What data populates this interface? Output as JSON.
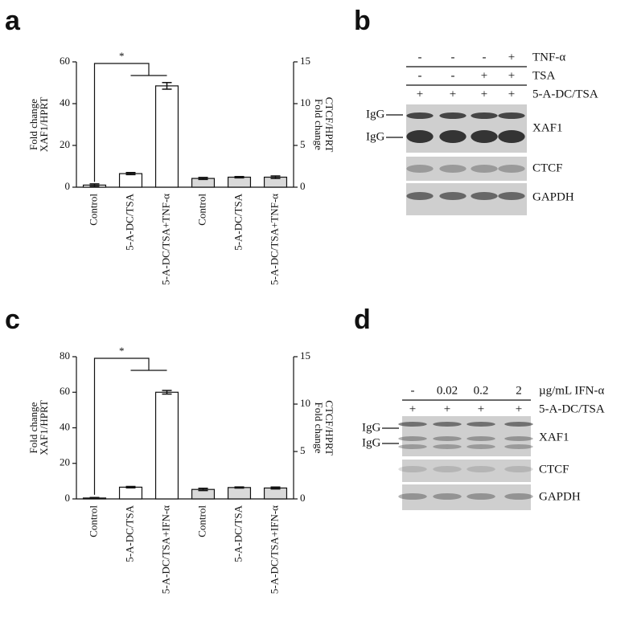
{
  "panel_labels": [
    "a",
    "b",
    "c",
    "d"
  ],
  "chart_data": [
    {
      "type": "bar",
      "categories": [
        "Control",
        "5-A-DC/TSA",
        "5-A-DC/TSA+TNF-α",
        "Control",
        "5-A-DC/TSA",
        "5-A-DC/TSA+TNF-α"
      ],
      "ylabel": [
        "Fold change",
        "XAF1/HPRT"
      ],
      "y2label": [
        "Fold change",
        "CTCF/HPRT"
      ],
      "ylim": [
        0,
        60
      ],
      "yticks": [
        0,
        20,
        40,
        60
      ],
      "y2lim": [
        0,
        15
      ],
      "y2ticks": [
        0,
        5,
        10,
        15
      ],
      "annotation": "*",
      "series": [
        {
          "color": "#ffffff",
          "values": [
            1,
            6.5,
            48.5,
            null,
            null,
            null
          ],
          "errors": [
            0.6,
            0.5,
            1.6,
            null,
            null,
            null
          ]
        },
        {
          "color": "#d9d9d9",
          "axis": "y2",
          "values": [
            null,
            null,
            null,
            1.05,
            1.2,
            1.2
          ],
          "errors": [
            null,
            null,
            null,
            0.12,
            0.08,
            0.15
          ]
        }
      ]
    },
    {
      "type": "bar",
      "categories": [
        "Control",
        "5-A-DC/TSA",
        "5-A-DC/TSA+IFN-α",
        "Control",
        "5-A-DC/TSA",
        "5-A-DC/TSA+IFN-α"
      ],
      "ylabel": [
        "Fold change",
        "XAF1/HPRT"
      ],
      "y2label": [
        "Fold change",
        "CTCF/HPRT"
      ],
      "ylim": [
        0,
        80
      ],
      "yticks": [
        0,
        20,
        40,
        60,
        80
      ],
      "y2lim": [
        0,
        15
      ],
      "y2ticks": [
        0,
        5,
        10,
        15
      ],
      "annotation": "*",
      "series": [
        {
          "color": "#ffffff",
          "values": [
            0.5,
            6.6,
            60,
            null,
            null,
            null
          ],
          "errors": [
            0.3,
            0.4,
            1.0,
            null,
            null,
            null
          ]
        },
        {
          "color": "#d9d9d9",
          "axis": "y2",
          "values": [
            null,
            null,
            null,
            1.0,
            1.2,
            1.15
          ],
          "errors": [
            null,
            null,
            null,
            0.12,
            0.06,
            0.1
          ]
        }
      ]
    }
  ],
  "blots": [
    {
      "conditions": [
        {
          "label": "TNF-α",
          "lanes": [
            "-",
            "-",
            "-",
            "+"
          ]
        },
        {
          "label": "TSA",
          "lanes": [
            "-",
            "-",
            "+",
            "+"
          ]
        },
        {
          "label": "5-A-DC/TSA",
          "lanes": [
            "+",
            "+",
            "+",
            "+"
          ]
        }
      ],
      "markers": [
        "IgG",
        "IgG"
      ],
      "bands": [
        "XAF1",
        "CTCF",
        "GAPDH"
      ]
    },
    {
      "conditions": [
        {
          "label": "µg/mL IFN-α",
          "lanes": [
            "-",
            "0.02",
            "0.2",
            "2"
          ]
        },
        {
          "label": "5-A-DC/TSA",
          "lanes": [
            "+",
            "+",
            "+",
            "+"
          ]
        }
      ],
      "markers": [
        "IgG",
        "IgG"
      ],
      "bands": [
        "XAF1",
        "CTCF",
        "GAPDH"
      ]
    }
  ]
}
